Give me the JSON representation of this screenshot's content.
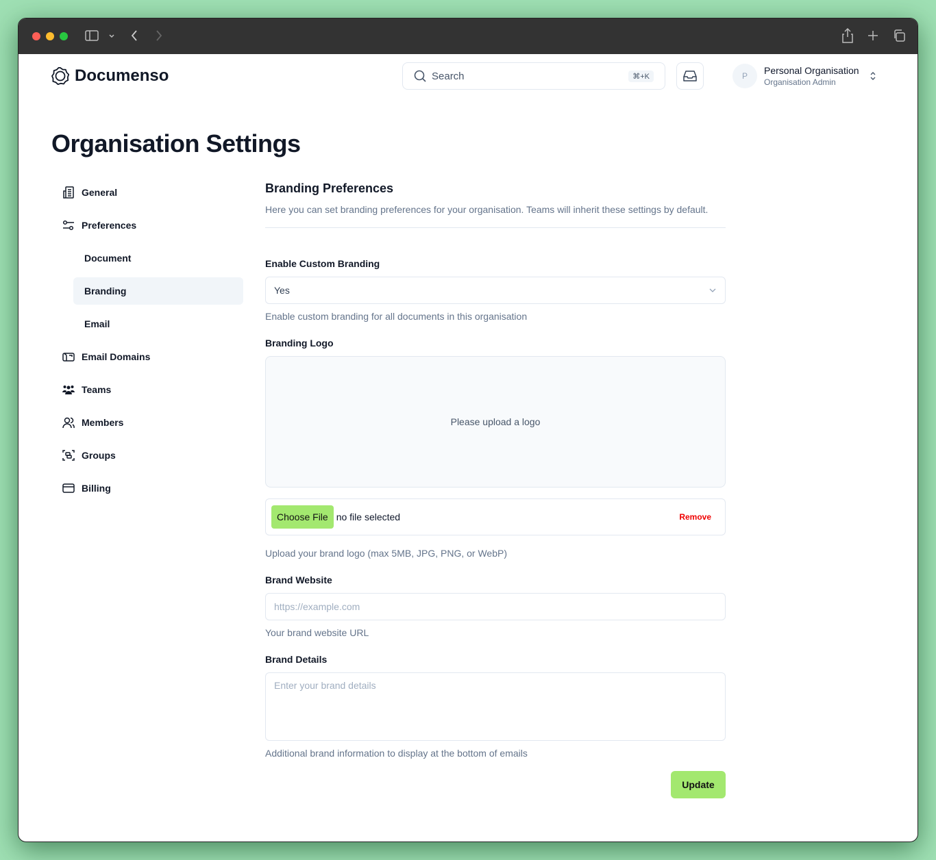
{
  "app": {
    "name": "Documenso"
  },
  "header": {
    "search_placeholder": "Search",
    "search_shortcut": "⌘+K",
    "org_name": "Personal Organisation",
    "org_role": "Organisation Admin",
    "avatar_initial": "P"
  },
  "page": {
    "title": "Organisation Settings"
  },
  "sidebar": {
    "items": [
      {
        "label": "General",
        "icon": "building-icon"
      },
      {
        "label": "Preferences",
        "icon": "sliders-icon"
      },
      {
        "label": "Document",
        "sub": true
      },
      {
        "label": "Branding",
        "sub": true,
        "active": true
      },
      {
        "label": "Email",
        "sub": true
      },
      {
        "label": "Email Domains",
        "icon": "mailbox-icon"
      },
      {
        "label": "Teams",
        "icon": "users-filled-icon"
      },
      {
        "label": "Members",
        "icon": "users-icon"
      },
      {
        "label": "Groups",
        "icon": "group-icon"
      },
      {
        "label": "Billing",
        "icon": "credit-card-icon"
      }
    ]
  },
  "form": {
    "title": "Branding Preferences",
    "description": "Here you can set branding preferences for your organisation. Teams will inherit these settings by default.",
    "custom_branding": {
      "label": "Enable Custom Branding",
      "value": "Yes",
      "help": "Enable custom branding for all documents in this organisation"
    },
    "logo": {
      "label": "Branding Logo",
      "placeholder": "Please upload a logo",
      "choose_label": "Choose File",
      "file_status": "no file selected",
      "remove_label": "Remove",
      "help": "Upload your brand logo (max 5MB, JPG, PNG, or WebP)"
    },
    "website": {
      "label": "Brand Website",
      "placeholder": "https://example.com",
      "help": "Your brand website URL"
    },
    "details": {
      "label": "Brand Details",
      "placeholder": "Enter your brand details",
      "help": "Additional brand information to display at the bottom of emails"
    },
    "update_label": "Update"
  },
  "colors": {
    "accent": "#a3e86f",
    "danger": "#ef0000",
    "text": "#0f172a",
    "muted": "#64748b"
  }
}
